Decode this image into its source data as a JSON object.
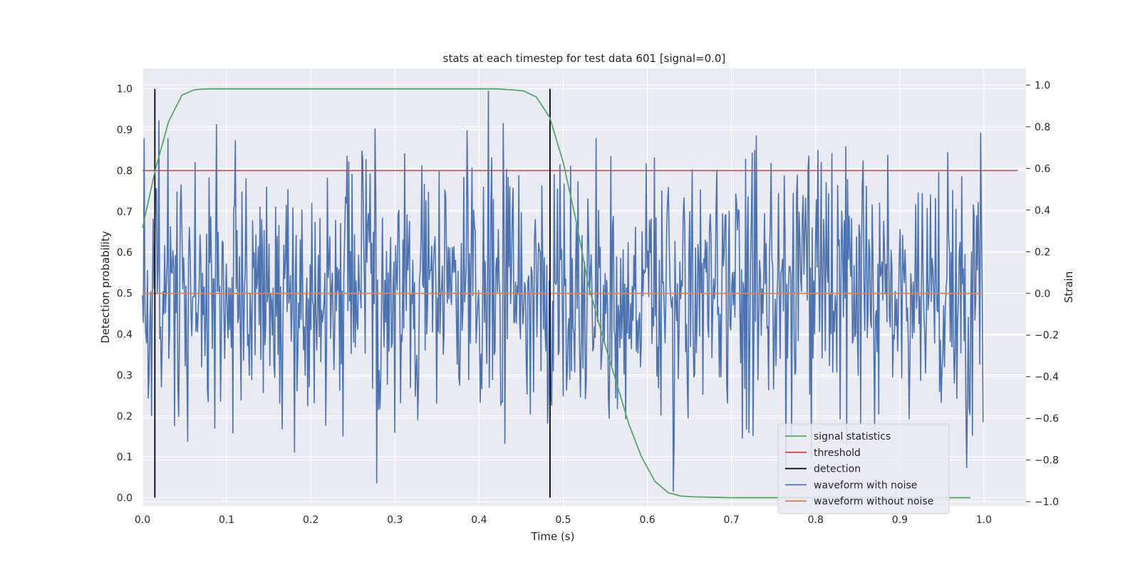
{
  "chart_data": {
    "type": "line",
    "title": "stats at each timestep for test data 601 [signal=0.0]",
    "xlabel": "Time (s)",
    "ylabel": "Detection probability",
    "ylabel_right": "Strain",
    "xlim": [
      0.0,
      1.05
    ],
    "ylim": [
      -0.02,
      1.05
    ],
    "ylim_right": [
      -1.02,
      1.08
    ],
    "x_ticks": [
      "0.0",
      "0.1",
      "0.2",
      "0.3",
      "0.4",
      "0.5",
      "0.6",
      "0.7",
      "0.8",
      "0.9",
      "1.0"
    ],
    "y_ticks": [
      "0.0",
      "0.1",
      "0.2",
      "0.3",
      "0.4",
      "0.5",
      "0.6",
      "0.7",
      "0.8",
      "0.9",
      "1.0"
    ],
    "y_right_ticks": [
      "−1.0",
      "−0.8",
      "−0.6",
      "−0.4",
      "−0.2",
      "0.0",
      "0.2",
      "0.4",
      "0.6",
      "0.8",
      "1.0"
    ],
    "grid": true,
    "legend_position": "lower right",
    "colors": {
      "background": "#eaeaf2",
      "grid": "#ffffff",
      "signal_statistics": "#55a868",
      "threshold": "#c44e52",
      "detection": "#000000",
      "waveform_with_noise": "#4c72b0",
      "waveform_without_noise": "#dd8452"
    },
    "legend": [
      {
        "label": "signal statistics",
        "color": "#55a868"
      },
      {
        "label": "threshold",
        "color": "#c44e52"
      },
      {
        "label": "detection",
        "color": "#000000"
      },
      {
        "label": "waveform with noise",
        "color": "#4c72b0"
      },
      {
        "label": "waveform without noise",
        "color": "#dd8452"
      }
    ],
    "series": [
      {
        "name": "signal statistics",
        "axis": "left",
        "x": [
          0.0,
          0.015,
          0.031,
          0.047,
          0.062,
          0.078,
          0.1,
          0.2,
          0.3,
          0.4,
          0.42,
          0.437,
          0.453,
          0.468,
          0.484,
          0.5,
          0.515,
          0.53,
          0.546,
          0.562,
          0.578,
          0.593,
          0.609,
          0.625,
          0.64,
          0.656,
          0.7,
          0.8,
          0.9,
          0.984
        ],
        "y": [
          0.66,
          0.8,
          0.92,
          0.985,
          0.998,
          1.0,
          1.0,
          1.0,
          1.0,
          1.0,
          1.0,
          0.998,
          0.995,
          0.98,
          0.93,
          0.82,
          0.68,
          0.52,
          0.4,
          0.29,
          0.18,
          0.1,
          0.04,
          0.012,
          0.004,
          0.002,
          0.0,
          0.0,
          0.0,
          0.0
        ]
      },
      {
        "name": "threshold",
        "axis": "left",
        "x": [
          0.0,
          1.04
        ],
        "y": [
          0.8,
          0.8
        ]
      },
      {
        "name": "detection",
        "axis": "left",
        "vlines": [
          0.0147,
          0.4843
        ],
        "y_range": [
          0.0,
          1.0
        ]
      },
      {
        "name": "waveform with noise",
        "axis": "right",
        "x_start": 0.0,
        "x_end": 0.999,
        "n_points": 1024,
        "approx_range": [
          -0.95,
          0.97
        ],
        "peak_points": [
          [
            0.016,
            0.5
          ],
          [
            0.046,
            0.52
          ],
          [
            0.088,
            0.81
          ],
          [
            0.123,
            0.55
          ],
          [
            0.276,
            0.79
          ],
          [
            0.278,
            -0.91
          ],
          [
            0.411,
            0.97
          ],
          [
            0.631,
            -0.95
          ],
          [
            0.608,
            0.65
          ],
          [
            0.996,
            0.77
          ]
        ]
      },
      {
        "name": "waveform without noise",
        "axis": "right",
        "x": [
          0.0,
          0.999
        ],
        "y": [
          0.0,
          0.0
        ]
      }
    ]
  }
}
